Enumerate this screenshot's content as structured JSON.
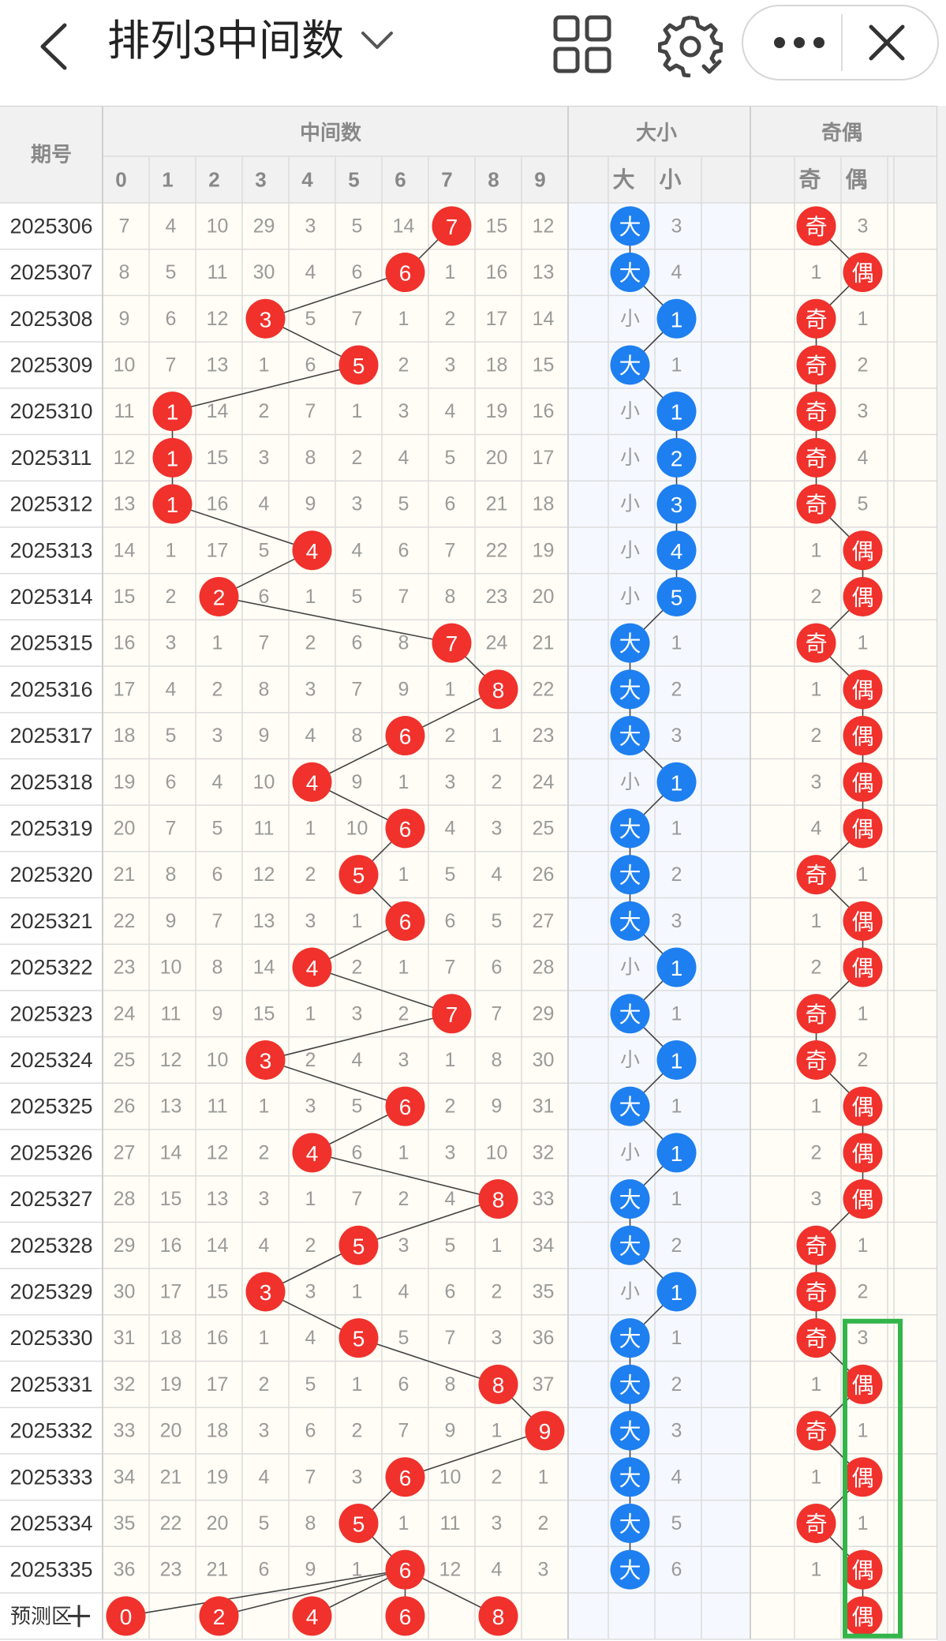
{
  "header": {
    "title": "排列3中间数",
    "icons": [
      "back-arrow-icon",
      "chevron-down-icon",
      "grid-icon",
      "gear-icon",
      "more-icon",
      "close-icon"
    ]
  },
  "table": {
    "col_issue": "期号",
    "group_mid": "中间数",
    "group_size": "大小",
    "group_odd": "奇偶",
    "digits": [
      "0",
      "1",
      "2",
      "3",
      "4",
      "5",
      "6",
      "7",
      "8",
      "9"
    ],
    "size_headers": [
      "大",
      "小"
    ],
    "odd_headers": [
      "奇",
      "偶"
    ],
    "predict_label": "预测区",
    "predict_values": [
      "0",
      "2",
      "4",
      "6",
      "8"
    ],
    "predict_parity": "偶",
    "rows": [
      {
        "issue": "2025306",
        "mid": [
          7,
          4,
          10,
          29,
          3,
          5,
          14,
          "7",
          15,
          12
        ],
        "size": [
          "大",
          "3"
        ],
        "odd": [
          "奇",
          "3"
        ]
      },
      {
        "issue": "2025307",
        "mid": [
          8,
          5,
          11,
          30,
          4,
          6,
          "6",
          1,
          16,
          13
        ],
        "size": [
          "大",
          "4"
        ],
        "odd": [
          "1",
          "偶"
        ]
      },
      {
        "issue": "2025308",
        "mid": [
          9,
          6,
          12,
          "3",
          5,
          7,
          1,
          2,
          17,
          14
        ],
        "size": [
          "1",
          "小"
        ],
        "odd": [
          "奇",
          "1"
        ]
      },
      {
        "issue": "2025309",
        "mid": [
          10,
          7,
          13,
          1,
          6,
          "5",
          2,
          3,
          18,
          15
        ],
        "size": [
          "大",
          "1"
        ],
        "odd": [
          "奇",
          "2"
        ]
      },
      {
        "issue": "2025310",
        "mid": [
          11,
          "1",
          14,
          2,
          7,
          1,
          3,
          4,
          19,
          16
        ],
        "size": [
          "1",
          "小"
        ],
        "odd": [
          "奇",
          "3"
        ]
      },
      {
        "issue": "2025311",
        "mid": [
          12,
          "1",
          15,
          3,
          8,
          2,
          4,
          5,
          20,
          17
        ],
        "size": [
          "2",
          "小"
        ],
        "odd": [
          "奇",
          "4"
        ]
      },
      {
        "issue": "2025312",
        "mid": [
          13,
          "1",
          16,
          4,
          9,
          3,
          5,
          6,
          21,
          18
        ],
        "size": [
          "3",
          "小"
        ],
        "odd": [
          "奇",
          "5"
        ]
      },
      {
        "issue": "2025313",
        "mid": [
          14,
          1,
          17,
          5,
          "4",
          4,
          6,
          7,
          22,
          19
        ],
        "size": [
          "4",
          "小"
        ],
        "odd": [
          "1",
          "偶"
        ]
      },
      {
        "issue": "2025314",
        "mid": [
          15,
          2,
          "2",
          6,
          1,
          5,
          7,
          8,
          23,
          20
        ],
        "size": [
          "5",
          "小"
        ],
        "odd": [
          "2",
          "偶"
        ]
      },
      {
        "issue": "2025315",
        "mid": [
          16,
          3,
          1,
          7,
          2,
          6,
          8,
          "7",
          24,
          21
        ],
        "size": [
          "大",
          "1"
        ],
        "odd": [
          "奇",
          "1"
        ]
      },
      {
        "issue": "2025316",
        "mid": [
          17,
          4,
          2,
          8,
          3,
          7,
          9,
          1,
          "8",
          22
        ],
        "size": [
          "大",
          "2"
        ],
        "odd": [
          "1",
          "偶"
        ]
      },
      {
        "issue": "2025317",
        "mid": [
          18,
          5,
          3,
          9,
          4,
          8,
          "6",
          2,
          1,
          23
        ],
        "size": [
          "大",
          "3"
        ],
        "odd": [
          "2",
          "偶"
        ]
      },
      {
        "issue": "2025318",
        "mid": [
          19,
          6,
          4,
          10,
          "4",
          9,
          1,
          3,
          2,
          24
        ],
        "size": [
          "1",
          "小"
        ],
        "odd": [
          "3",
          "偶"
        ]
      },
      {
        "issue": "2025319",
        "mid": [
          20,
          7,
          5,
          11,
          1,
          10,
          "6",
          4,
          3,
          25
        ],
        "size": [
          "大",
          "1"
        ],
        "odd": [
          "4",
          "偶"
        ]
      },
      {
        "issue": "2025320",
        "mid": [
          21,
          8,
          6,
          12,
          2,
          "5",
          1,
          5,
          4,
          26
        ],
        "size": [
          "大",
          "2"
        ],
        "odd": [
          "奇",
          "1"
        ]
      },
      {
        "issue": "2025321",
        "mid": [
          22,
          9,
          7,
          13,
          3,
          1,
          "6",
          6,
          5,
          27
        ],
        "size": [
          "大",
          "3"
        ],
        "odd": [
          "1",
          "偶"
        ]
      },
      {
        "issue": "2025322",
        "mid": [
          23,
          10,
          8,
          14,
          "4",
          2,
          1,
          7,
          6,
          28
        ],
        "size": [
          "1",
          "小"
        ],
        "odd": [
          "2",
          "偶"
        ]
      },
      {
        "issue": "2025323",
        "mid": [
          24,
          11,
          9,
          15,
          1,
          3,
          2,
          "7",
          7,
          29
        ],
        "size": [
          "大",
          "1"
        ],
        "odd": [
          "奇",
          "1"
        ]
      },
      {
        "issue": "2025324",
        "mid": [
          25,
          12,
          10,
          "3",
          2,
          4,
          3,
          1,
          8,
          30
        ],
        "size": [
          "1",
          "小"
        ],
        "odd": [
          "奇",
          "2"
        ]
      },
      {
        "issue": "2025325",
        "mid": [
          26,
          13,
          11,
          1,
          3,
          5,
          "6",
          2,
          9,
          31
        ],
        "size": [
          "大",
          "1"
        ],
        "odd": [
          "1",
          "偶"
        ]
      },
      {
        "issue": "2025326",
        "mid": [
          27,
          14,
          12,
          2,
          "4",
          6,
          1,
          3,
          10,
          32
        ],
        "size": [
          "1",
          "小"
        ],
        "odd": [
          "2",
          "偶"
        ]
      },
      {
        "issue": "2025327",
        "mid": [
          28,
          15,
          13,
          3,
          1,
          7,
          2,
          4,
          "8",
          33
        ],
        "size": [
          "大",
          "1"
        ],
        "odd": [
          "3",
          "偶"
        ]
      },
      {
        "issue": "2025328",
        "mid": [
          29,
          16,
          14,
          4,
          2,
          "5",
          3,
          5,
          1,
          34
        ],
        "size": [
          "大",
          "2"
        ],
        "odd": [
          "奇",
          "1"
        ]
      },
      {
        "issue": "2025329",
        "mid": [
          30,
          17,
          15,
          "3",
          3,
          1,
          4,
          6,
          2,
          35
        ],
        "size": [
          "1",
          "小"
        ],
        "odd": [
          "奇",
          "2"
        ]
      },
      {
        "issue": "2025330",
        "mid": [
          31,
          18,
          16,
          1,
          4,
          "5",
          5,
          7,
          3,
          36
        ],
        "size": [
          "大",
          "1"
        ],
        "odd": [
          "奇",
          "3"
        ]
      },
      {
        "issue": "2025331",
        "mid": [
          32,
          19,
          17,
          2,
          5,
          1,
          6,
          8,
          "8",
          37
        ],
        "size": [
          "大",
          "2"
        ],
        "odd": [
          "1",
          "偶"
        ]
      },
      {
        "issue": "2025332",
        "mid": [
          33,
          20,
          18,
          3,
          6,
          2,
          7,
          9,
          1,
          "9"
        ],
        "size": [
          "大",
          "3"
        ],
        "odd": [
          "奇",
          "1"
        ]
      },
      {
        "issue": "2025333",
        "mid": [
          34,
          21,
          19,
          4,
          7,
          3,
          "6",
          10,
          2,
          1
        ],
        "size": [
          "大",
          "4"
        ],
        "odd": [
          "1",
          "偶"
        ]
      },
      {
        "issue": "2025334",
        "mid": [
          35,
          22,
          20,
          5,
          8,
          "5",
          1,
          11,
          3,
          2
        ],
        "size": [
          "大",
          "5"
        ],
        "odd": [
          "奇",
          "1"
        ]
      },
      {
        "issue": "2025335",
        "mid": [
          36,
          23,
          21,
          6,
          9,
          1,
          "6",
          12,
          4,
          3
        ],
        "size": [
          "大",
          "6"
        ],
        "odd": [
          "1",
          "偶"
        ]
      }
    ]
  },
  "colors": {
    "red_ball": "#f0312c",
    "blue_ball": "#1e7ff0",
    "header_bg": "#f1f1f1",
    "grid_line": "#dcdcdc",
    "cell_text": "#9a9a9a",
    "highlight_box": "#33b54a"
  }
}
